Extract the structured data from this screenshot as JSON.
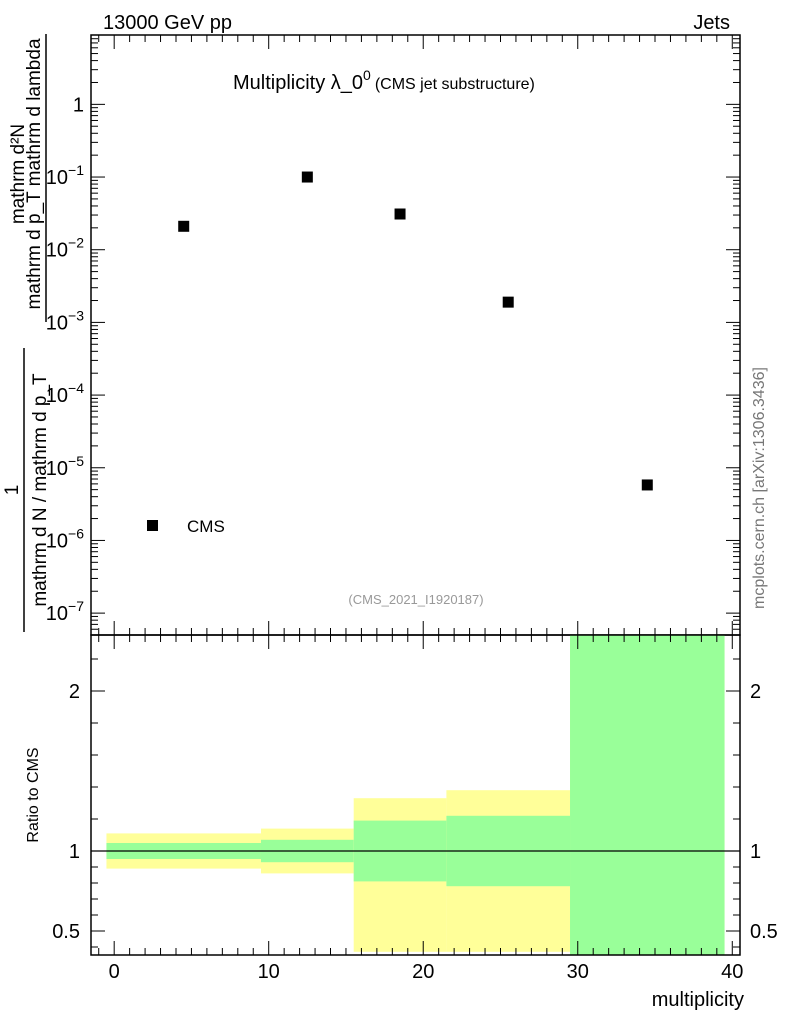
{
  "header": {
    "left_label": "13000 GeV pp",
    "right_label": "Jets"
  },
  "watermark": "mcplots.cern.ch [arXiv:1306.3436]",
  "chart_data": [
    {
      "type": "scatter",
      "title_main": "Multiplicity λ_0",
      "title_sup": "0",
      "title_sub": "(CMS jet substructure)",
      "ylabel_numerator": "mathrm d²N",
      "ylabel_numerator_line2": "mathrm d p_T mathrm d lambda",
      "ylabel_prefix": "1",
      "ylabel_denominator": "mathrm d N / mathrm d p_T",
      "analysis_tag": "(CMS_2021_I1920187)",
      "yscale": "log",
      "ylim": [
        5e-08,
        9
      ],
      "xlim": [
        -1.5,
        40.5
      ],
      "ytick_labels": [
        {
          "value": 1,
          "label": "1"
        },
        {
          "value": 0.1,
          "base": "10",
          "exp": "−1"
        },
        {
          "value": 0.01,
          "base": "10",
          "exp": "−2"
        },
        {
          "value": 0.001,
          "base": "10",
          "exp": "−3"
        },
        {
          "value": 0.0001,
          "base": "10",
          "exp": "−4"
        },
        {
          "value": 1e-05,
          "base": "10",
          "exp": "−5"
        },
        {
          "value": 1e-06,
          "base": "10",
          "exp": "−6"
        },
        {
          "value": 1e-07,
          "base": "10",
          "exp": "−7"
        }
      ],
      "series": [
        {
          "name": "CMS",
          "marker": "square",
          "color": "#000000",
          "x": [
            4.5,
            12.5,
            18.5,
            25.5,
            34.5
          ],
          "y": [
            0.021,
            0.1,
            0.031,
            0.0019,
            5.8e-06
          ]
        }
      ],
      "legend": {
        "placement": "bottom-left",
        "entries": [
          "CMS"
        ]
      }
    },
    {
      "type": "area",
      "ylabel": "Ratio to CMS",
      "xlabel": "multiplicity",
      "ylim": [
        0.35,
        2.35
      ],
      "xlim": [
        -1.5,
        40.5
      ],
      "reference_line": 1,
      "ytick_labels": [
        "0.5",
        "1",
        "2"
      ],
      "ytick_values": [
        0.5,
        1,
        2
      ],
      "xtick_labels": [
        "0",
        "10",
        "20",
        "30",
        "40"
      ],
      "xtick_values": [
        0,
        10,
        20,
        30,
        40
      ],
      "bands": {
        "colors": {
          "inner": "#99ff99",
          "outer": "#ffff99"
        },
        "bins": [
          {
            "x0": -0.5,
            "x1": 9.5,
            "inner": [
              0.95,
              1.05
            ],
            "outer": [
              0.89,
              1.11
            ]
          },
          {
            "x0": 9.5,
            "x1": 15.5,
            "inner": [
              0.93,
              1.07
            ],
            "outer": [
              0.86,
              1.14
            ]
          },
          {
            "x0": 15.5,
            "x1": 21.5,
            "inner": [
              0.81,
              1.19
            ],
            "outer": [
              0.37,
              1.33
            ]
          },
          {
            "x0": 21.5,
            "x1": 29.5,
            "inner": [
              0.78,
              1.22
            ],
            "outer": [
              0.37,
              1.38
            ]
          },
          {
            "x0": 29.5,
            "x1": 39.5,
            "inner": [
              0.35,
              2.35
            ],
            "outer": [
              0.35,
              2.35
            ]
          }
        ]
      }
    }
  ]
}
